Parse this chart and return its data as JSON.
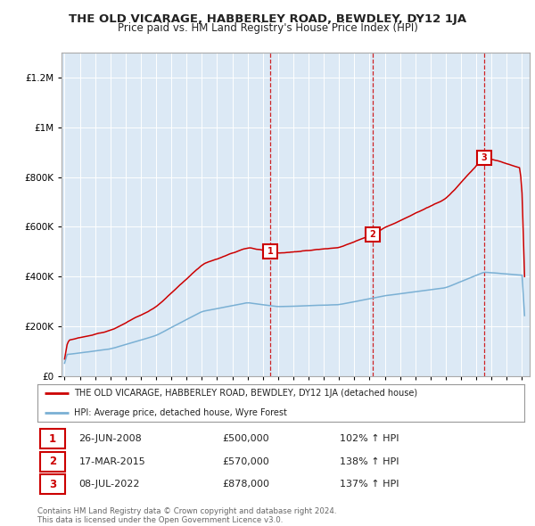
{
  "title": "THE OLD VICARAGE, HABBERLEY ROAD, BEWDLEY, DY12 1JA",
  "subtitle": "Price paid vs. HM Land Registry's House Price Index (HPI)",
  "ytick_values": [
    0,
    200000,
    400000,
    600000,
    800000,
    1000000,
    1200000
  ],
  "ylim": [
    0,
    1300000
  ],
  "xlim_start": 1994.8,
  "xlim_end": 2025.5,
  "red_color": "#cc0000",
  "blue_color": "#7ab0d4",
  "dashed_color": "#cc0000",
  "background_plot": "#dce9f5",
  "background_fig": "#ffffff",
  "grid_color": "#ffffff",
  "sales": [
    {
      "date_num": 2008.49,
      "price": 500000,
      "label": "1"
    },
    {
      "date_num": 2015.21,
      "price": 570000,
      "label": "2"
    },
    {
      "date_num": 2022.52,
      "price": 878000,
      "label": "3"
    }
  ],
  "legend_line1": "THE OLD VICARAGE, HABBERLEY ROAD, BEWDLEY, DY12 1JA (detached house)",
  "legend_line2": "HPI: Average price, detached house, Wyre Forest",
  "table_rows": [
    [
      "1",
      "26-JUN-2008",
      "£500,000",
      "102% ↑ HPI"
    ],
    [
      "2",
      "17-MAR-2015",
      "£570,000",
      "138% ↑ HPI"
    ],
    [
      "3",
      "08-JUL-2022",
      "£878,000",
      "137% ↑ HPI"
    ]
  ],
  "footnote": "Contains HM Land Registry data © Crown copyright and database right 2024.\nThis data is licensed under the Open Government Licence v3.0.",
  "title_fontsize": 9.5,
  "subtitle_fontsize": 8.5
}
